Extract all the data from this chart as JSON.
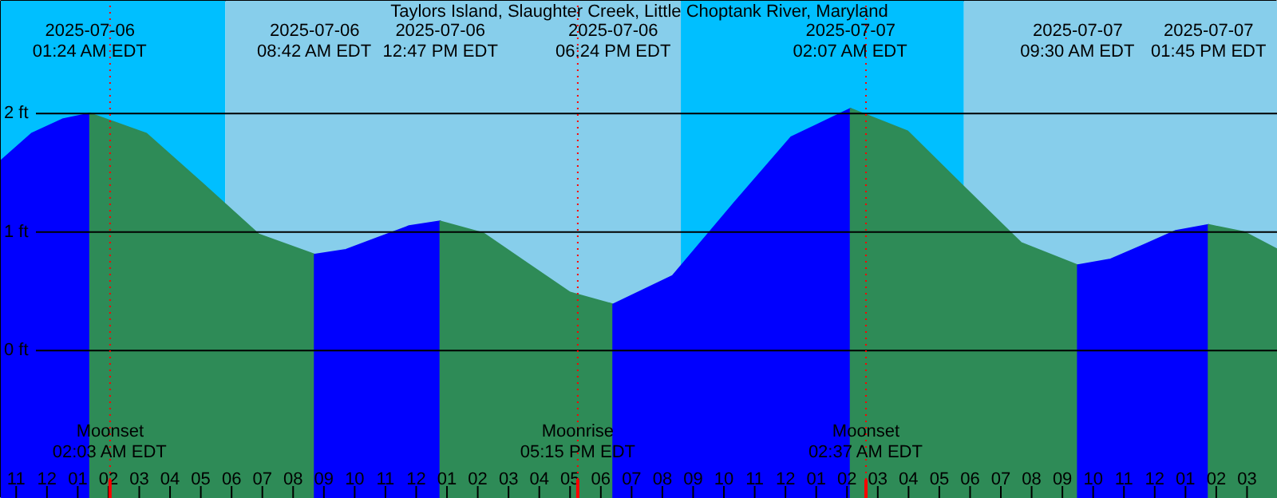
{
  "chart_data": {
    "type": "area",
    "title": "Taylors Island, Slaughter Creek, Little Choptank River, Maryland",
    "xlim": [
      "2025-07-05T22:30",
      "2025-07-07T16:00"
    ],
    "ylim": [
      -1.25,
      2.95
    ],
    "xticks": [
      {
        "value": "2025-07-05T23:00",
        "label": "11"
      },
      {
        "value": "2025-07-06T00:00",
        "label": "12"
      },
      {
        "value": "2025-07-06T01:00",
        "label": "01"
      },
      {
        "value": "2025-07-06T02:00",
        "label": "02"
      },
      {
        "value": "2025-07-06T03:00",
        "label": "03"
      },
      {
        "value": "2025-07-06T04:00",
        "label": "04"
      },
      {
        "value": "2025-07-06T05:00",
        "label": "05"
      },
      {
        "value": "2025-07-06T06:00",
        "label": "06"
      },
      {
        "value": "2025-07-06T07:00",
        "label": "07"
      },
      {
        "value": "2025-07-06T08:00",
        "label": "08"
      },
      {
        "value": "2025-07-06T09:00",
        "label": "09"
      },
      {
        "value": "2025-07-06T10:00",
        "label": "10"
      },
      {
        "value": "2025-07-06T11:00",
        "label": "11"
      },
      {
        "value": "2025-07-06T12:00",
        "label": "12"
      },
      {
        "value": "2025-07-06T13:00",
        "label": "01"
      },
      {
        "value": "2025-07-06T14:00",
        "label": "02"
      },
      {
        "value": "2025-07-06T15:00",
        "label": "03"
      },
      {
        "value": "2025-07-06T16:00",
        "label": "04"
      },
      {
        "value": "2025-07-06T17:00",
        "label": "05"
      },
      {
        "value": "2025-07-06T18:00",
        "label": "06"
      },
      {
        "value": "2025-07-06T19:00",
        "label": "07"
      },
      {
        "value": "2025-07-06T20:00",
        "label": "08"
      },
      {
        "value": "2025-07-06T21:00",
        "label": "09"
      },
      {
        "value": "2025-07-06T22:00",
        "label": "10"
      },
      {
        "value": "2025-07-06T23:00",
        "label": "11"
      },
      {
        "value": "2025-07-07T00:00",
        "label": "12"
      },
      {
        "value": "2025-07-07T01:00",
        "label": "01"
      },
      {
        "value": "2025-07-07T02:00",
        "label": "02"
      },
      {
        "value": "2025-07-07T03:00",
        "label": "03"
      },
      {
        "value": "2025-07-07T04:00",
        "label": "04"
      },
      {
        "value": "2025-07-07T05:00",
        "label": "05"
      },
      {
        "value": "2025-07-07T06:00",
        "label": "06"
      },
      {
        "value": "2025-07-07T07:00",
        "label": "07"
      },
      {
        "value": "2025-07-07T08:00",
        "label": "08"
      },
      {
        "value": "2025-07-07T09:00",
        "label": "09"
      },
      {
        "value": "2025-07-07T10:00",
        "label": "10"
      },
      {
        "value": "2025-07-07T11:00",
        "label": "11"
      },
      {
        "value": "2025-07-07T12:00",
        "label": "12"
      },
      {
        "value": "2025-07-07T13:00",
        "label": "01"
      },
      {
        "value": "2025-07-07T14:00",
        "label": "02"
      },
      {
        "value": "2025-07-07T15:00",
        "label": "03"
      }
    ],
    "yticks": [
      {
        "value": 0,
        "label": "0 ft"
      },
      {
        "value": 1,
        "label": "1 ft"
      },
      {
        "value": 2,
        "label": "2 ft"
      }
    ],
    "grid": "y",
    "bands": [
      {
        "axis": "x",
        "from": "2025-07-05T22:30",
        "to": "2025-07-06T05:48",
        "color": "#00bfff"
      },
      {
        "axis": "x",
        "from": "2025-07-06T05:48",
        "to": "2025-07-06T20:36",
        "color": "#87ceeb"
      },
      {
        "axis": "x",
        "from": "2025-07-06T20:36",
        "to": "2025-07-07T05:48",
        "color": "#00bfff"
      },
      {
        "axis": "x",
        "from": "2025-07-07T05:48",
        "to": "2025-07-07T16:00",
        "color": "#87ceeb"
      }
    ],
    "ref_lines": [
      {
        "axis": "x",
        "value": "2025-07-06T02:03",
        "label": "Moonset\n02:03 AM EDT",
        "color": "#ff0000",
        "line_style": "dotted"
      },
      {
        "axis": "x",
        "value": "2025-07-06T17:15",
        "label": "Moonrise\n05:15 PM EDT",
        "color": "#ff0000",
        "line_style": "dotted"
      },
      {
        "axis": "x",
        "value": "2025-07-07T02:37",
        "label": "Moonset\n02:37 AM EDT",
        "color": "#ff0000",
        "line_style": "dotted"
      }
    ],
    "series": [
      {
        "color": "#0000ff",
        "x": [
          "2025-07-05T22:30",
          "2025-07-05T23:30",
          "2025-07-06T00:30",
          "2025-07-06T01:24"
        ],
        "values": [
          1.6,
          1.83,
          1.95,
          2.0
        ]
      },
      {
        "color": "#2e8b57",
        "x": [
          "2025-07-06T01:24",
          "2025-07-06T03:14",
          "2025-07-06T05:03",
          "2025-07-06T06:53",
          "2025-07-06T08:42"
        ],
        "values": [
          2.0,
          1.83,
          1.41,
          0.98,
          0.81
        ]
      },
      {
        "color": "#0000ff",
        "x": [
          "2025-07-06T08:42",
          "2025-07-06T09:43",
          "2025-07-06T10:44",
          "2025-07-06T11:46",
          "2025-07-06T12:47"
        ],
        "values": [
          0.81,
          0.85,
          0.95,
          1.05,
          1.09
        ]
      },
      {
        "color": "#2e8b57",
        "x": [
          "2025-07-06T12:47",
          "2025-07-06T14:11",
          "2025-07-06T15:35",
          "2025-07-06T17:00",
          "2025-07-06T18:24"
        ],
        "values": [
          1.09,
          0.99,
          0.74,
          0.49,
          0.39
        ]
      },
      {
        "color": "#0000ff",
        "x": [
          "2025-07-06T18:24",
          "2025-07-06T20:20",
          "2025-07-06T22:15",
          "2025-07-07T00:11",
          "2025-07-07T02:07"
        ],
        "values": [
          0.39,
          0.63,
          1.22,
          1.8,
          2.04
        ]
      },
      {
        "color": "#2e8b57",
        "x": [
          "2025-07-07T02:07",
          "2025-07-07T03:58",
          "2025-07-07T05:48",
          "2025-07-07T07:39",
          "2025-07-07T09:30"
        ],
        "values": [
          2.04,
          1.85,
          1.38,
          0.91,
          0.72
        ]
      },
      {
        "color": "#0000ff",
        "x": [
          "2025-07-07T09:30",
          "2025-07-07T10:34",
          "2025-07-07T11:38",
          "2025-07-07T12:41",
          "2025-07-07T13:45"
        ],
        "values": [
          0.72,
          0.77,
          0.89,
          1.01,
          1.06
        ]
      },
      {
        "color": "#2e8b57",
        "x": [
          "2025-07-07T13:45",
          "2025-07-07T14:54",
          "2025-07-07T16:00"
        ],
        "values": [
          1.06,
          1.0,
          0.85
        ]
      }
    ],
    "annotations": [
      "2025-07-06\n01:24 AM EDT",
      "2025-07-06\n08:42 AM EDT",
      "2025-07-06\n12:47 PM EDT",
      "2025-07-06\n06:24 PM EDT",
      "2025-07-07\n02:07 AM EDT",
      "2025-07-07\n09:30 AM EDT",
      "2025-07-07\n01:45 PM EDT"
    ]
  }
}
